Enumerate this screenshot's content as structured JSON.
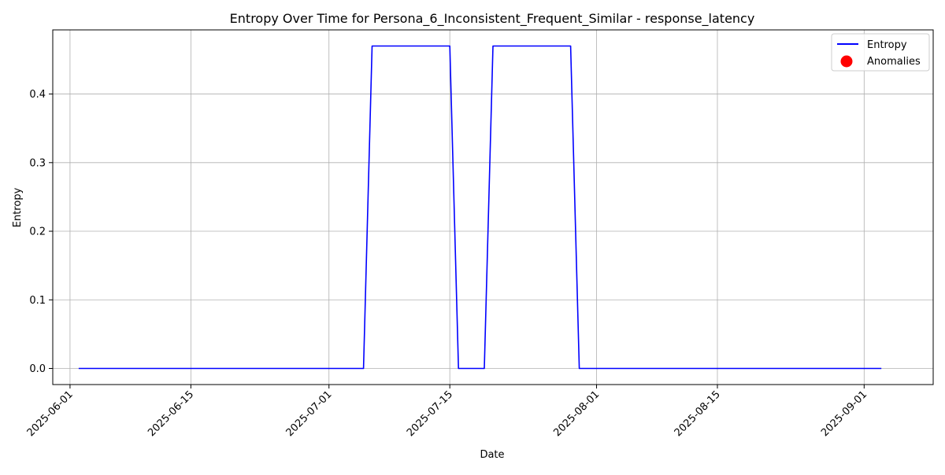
{
  "chart_data": {
    "type": "line",
    "title": "Entropy Over Time for Persona_6_Inconsistent_Frequent_Similar - response_latency",
    "xlabel": "Date",
    "ylabel": "Entropy",
    "x_is_date": true,
    "xlim": [
      "2025-05-30",
      "2025-09-09"
    ],
    "ylim": [
      -0.0235,
      0.4935
    ],
    "x_ticks": [
      "2025-06-01",
      "2025-06-15",
      "2025-07-01",
      "2025-07-15",
      "2025-08-01",
      "2025-08-15",
      "2025-09-01"
    ],
    "y_ticks": [
      0.0,
      0.1,
      0.2,
      0.3,
      0.4
    ],
    "y_tick_labels": [
      "0.0",
      "0.1",
      "0.2",
      "0.3",
      "0.4"
    ],
    "grid": true,
    "legend_position": "top-right",
    "series": [
      {
        "name": "Entropy",
        "color": "#0000ff",
        "points": [
          [
            "2025-06-02",
            0.0
          ],
          [
            "2025-07-05",
            0.0
          ],
          [
            "2025-07-06",
            0.47
          ],
          [
            "2025-07-15",
            0.47
          ],
          [
            "2025-07-16",
            0.0
          ],
          [
            "2025-07-19",
            0.0
          ],
          [
            "2025-07-20",
            0.47
          ],
          [
            "2025-07-29",
            0.47
          ],
          [
            "2025-07-30",
            0.0
          ],
          [
            "2025-09-03",
            0.0
          ]
        ]
      }
    ],
    "anomalies": {
      "name": "Anomalies",
      "color": "#ff0000",
      "points": []
    }
  }
}
